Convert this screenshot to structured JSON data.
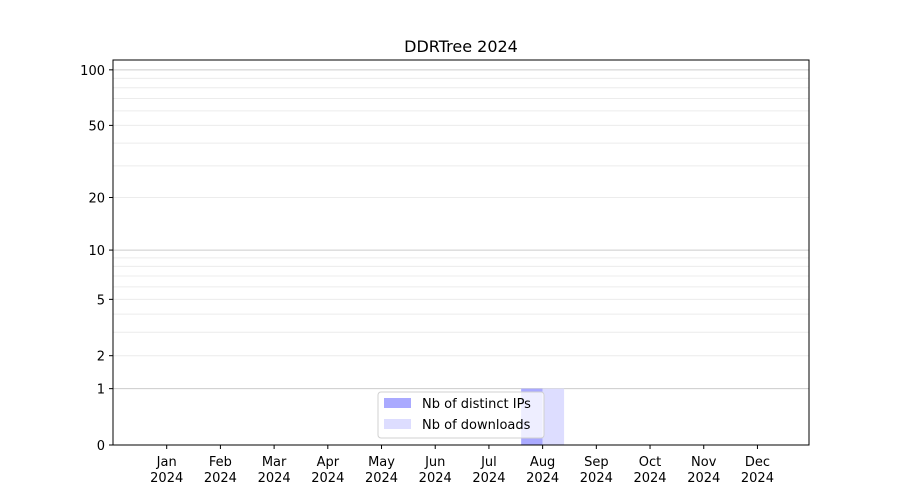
{
  "chart_data": {
    "type": "bar",
    "title": "DDRTree 2024",
    "xlabel": "",
    "ylabel": "",
    "yscale": "log(1+y)",
    "ylim": [
      0,
      113
    ],
    "grid": "horizontal major and minor",
    "legend_position": "lower-center",
    "categories": [
      "Jan\n2024",
      "Feb\n2024",
      "Mar\n2024",
      "Apr\n2024",
      "May\n2024",
      "Jun\n2024",
      "Jul\n2024",
      "Aug\n2024",
      "Sep\n2024",
      "Oct\n2024",
      "Nov\n2024",
      "Dec\n2024"
    ],
    "yticks": [
      0,
      1,
      2,
      5,
      10,
      20,
      50,
      100
    ],
    "series": [
      {
        "name": "Nb of distinct IPs",
        "color": "#aaaaff",
        "values": [
          0,
          0,
          0,
          0,
          0,
          0,
          0,
          1,
          0,
          0,
          0,
          0
        ]
      },
      {
        "name": "Nb of downloads",
        "color": "#ddddff",
        "values": [
          0,
          0,
          0,
          0,
          0,
          0,
          0,
          1,
          0,
          0,
          0,
          0
        ]
      }
    ]
  }
}
